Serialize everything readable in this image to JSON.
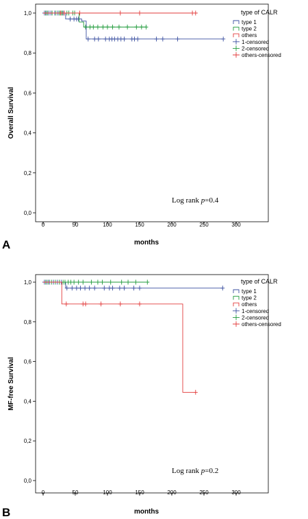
{
  "chart_data": [
    {
      "type": "line",
      "panel_label": "A",
      "ylabel": "Overall Survival",
      "xlabel": "months",
      "xlim": [
        0,
        300
      ],
      "ylim": [
        0,
        1
      ],
      "xticks": [
        "0",
        "50",
        "100",
        "150",
        "200",
        "250",
        "300"
      ],
      "yticks": [
        "0,0",
        "0,2",
        "0,4",
        "0,6",
        "0,8",
        "1,0"
      ],
      "annotation": {
        "pre": "Log rank ",
        "var": "p",
        "post": "=0.4"
      },
      "legend": {
        "title": "type of CALR",
        "placement": "top-right",
        "items": [
          "type 1",
          "type 2",
          "others",
          "1-censored",
          "2-censored",
          "others-censored"
        ]
      },
      "series": [
        {
          "name": "type 1",
          "color": "#3a4fa0",
          "steps": [
            [
              0,
              1.0
            ],
            [
              35,
              0.97
            ],
            [
              59,
              0.97
            ],
            [
              60,
              0.96
            ],
            [
              63,
              0.96
            ],
            [
              67,
              0.87
            ],
            [
              280,
              0.87
            ]
          ],
          "censored": [
            [
              2,
              1.0
            ],
            [
              5,
              1.0
            ],
            [
              9,
              1.0
            ],
            [
              12,
              1.0
            ],
            [
              18,
              1.0
            ],
            [
              23,
              1.0
            ],
            [
              27,
              1.0
            ],
            [
              31,
              1.0
            ],
            [
              42,
              0.97
            ],
            [
              48,
              0.97
            ],
            [
              52,
              0.97
            ],
            [
              55,
              0.97
            ],
            [
              70,
              0.87
            ],
            [
              80,
              0.87
            ],
            [
              86,
              0.87
            ],
            [
              97,
              0.87
            ],
            [
              103,
              0.87
            ],
            [
              107,
              0.87
            ],
            [
              111,
              0.87
            ],
            [
              116,
              0.87
            ],
            [
              121,
              0.87
            ],
            [
              126,
              0.87
            ],
            [
              138,
              0.87
            ],
            [
              142,
              0.87
            ],
            [
              147,
              0.87
            ],
            [
              176,
              0.87
            ],
            [
              186,
              0.87
            ],
            [
              209,
              0.87
            ],
            [
              280,
              0.87
            ]
          ]
        },
        {
          "name": "type 2",
          "color": "#1f9a3a",
          "steps": [
            [
              0,
              1.0
            ],
            [
              52,
              1.0
            ],
            [
              56,
              0.955
            ],
            [
              61,
              0.955
            ],
            [
              63,
              0.93
            ],
            [
              160,
              0.93
            ]
          ],
          "censored": [
            [
              4,
              1.0
            ],
            [
              7,
              1.0
            ],
            [
              14,
              1.0
            ],
            [
              20,
              1.0
            ],
            [
              25,
              1.0
            ],
            [
              28,
              1.0
            ],
            [
              30,
              1.0
            ],
            [
              33,
              1.0
            ],
            [
              37,
              1.0
            ],
            [
              40,
              1.0
            ],
            [
              46,
              1.0
            ],
            [
              49,
              1.0
            ],
            [
              66,
              0.93
            ],
            [
              73,
              0.93
            ],
            [
              78,
              0.93
            ],
            [
              85,
              0.93
            ],
            [
              93,
              0.93
            ],
            [
              100,
              0.93
            ],
            [
              108,
              0.93
            ],
            [
              118,
              0.93
            ],
            [
              131,
              0.93
            ],
            [
              145,
              0.93
            ],
            [
              153,
              0.93
            ],
            [
              160,
              0.93
            ]
          ]
        },
        {
          "name": "others",
          "color": "#e23a3a",
          "steps": [
            [
              0,
              1.0
            ],
            [
              237,
              1.0
            ]
          ],
          "censored": [
            [
              27,
              1.0
            ],
            [
              33,
              1.0
            ],
            [
              57,
              1.0
            ],
            [
              120,
              1.0
            ],
            [
              150,
              1.0
            ],
            [
              232,
              1.0
            ],
            [
              237,
              1.0
            ]
          ]
        }
      ]
    },
    {
      "type": "line",
      "panel_label": "B",
      "ylabel": "MF-free Survival",
      "xlabel": "months",
      "xlim": [
        0,
        300
      ],
      "ylim": [
        0,
        1
      ],
      "xticks": [
        "0",
        "50",
        "100",
        "150",
        "200",
        "250",
        "300"
      ],
      "yticks": [
        "0,0",
        "0,2",
        "0,4",
        "0,6",
        "0,8",
        "1,0"
      ],
      "annotation": {
        "pre": "Log rank ",
        "var": "p",
        "post": "=0.2"
      },
      "legend": {
        "title": "type of CALR",
        "placement": "top-right",
        "items": [
          "type 1",
          "type 2",
          "others",
          "1-censored",
          "2-censored",
          "others-censored"
        ]
      },
      "series": [
        {
          "name": "type 1",
          "color": "#3a4fa0",
          "steps": [
            [
              0,
              1.0
            ],
            [
              33,
              1.0
            ],
            [
              35,
              0.97
            ],
            [
              280,
              0.97
            ]
          ],
          "censored": [
            [
              2,
              1.0
            ],
            [
              6,
              1.0
            ],
            [
              10,
              1.0
            ],
            [
              16,
              1.0
            ],
            [
              22,
              1.0
            ],
            [
              28,
              1.0
            ],
            [
              37,
              0.97
            ],
            [
              45,
              0.97
            ],
            [
              52,
              0.97
            ],
            [
              58,
              0.97
            ],
            [
              65,
              0.97
            ],
            [
              72,
              0.97
            ],
            [
              80,
              0.97
            ],
            [
              95,
              0.97
            ],
            [
              103,
              0.97
            ],
            [
              108,
              0.97
            ],
            [
              119,
              0.97
            ],
            [
              126,
              0.97
            ],
            [
              141,
              0.97
            ],
            [
              150,
              0.97
            ],
            [
              279,
              0.97
            ]
          ]
        },
        {
          "name": "type 2",
          "color": "#1f9a3a",
          "steps": [
            [
              0,
              1.0
            ],
            [
              163,
              1.0
            ]
          ],
          "censored": [
            [
              4,
              1.0
            ],
            [
              8,
              1.0
            ],
            [
              13,
              1.0
            ],
            [
              19,
              1.0
            ],
            [
              25,
              1.0
            ],
            [
              31,
              1.0
            ],
            [
              34,
              1.0
            ],
            [
              39,
              1.0
            ],
            [
              43,
              1.0
            ],
            [
              48,
              1.0
            ],
            [
              55,
              1.0
            ],
            [
              62,
              1.0
            ],
            [
              75,
              1.0
            ],
            [
              85,
              1.0
            ],
            [
              92,
              1.0
            ],
            [
              105,
              1.0
            ],
            [
              122,
              1.0
            ],
            [
              132,
              1.0
            ],
            [
              144,
              1.0
            ],
            [
              162,
              1.0
            ]
          ]
        },
        {
          "name": "others",
          "color": "#e23a3a",
          "steps": [
            [
              0,
              1.0
            ],
            [
              28,
              1.0
            ],
            [
              29,
              0.89
            ],
            [
              217,
              0.89
            ],
            [
              217,
              0.445
            ],
            [
              237,
              0.445
            ]
          ],
          "censored": [
            [
              36,
              0.89
            ],
            [
              62,
              0.89
            ],
            [
              66,
              0.89
            ],
            [
              90,
              0.89
            ],
            [
              120,
              0.89
            ],
            [
              150,
              0.89
            ],
            [
              237,
              0.445
            ]
          ]
        }
      ]
    }
  ]
}
